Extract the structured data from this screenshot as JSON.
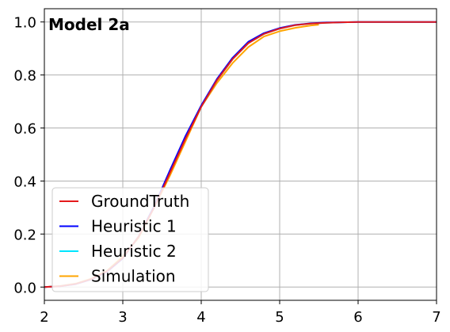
{
  "chart_data": {
    "type": "line",
    "title": "Model 2a",
    "xlabel": "",
    "ylabel": "",
    "xlim": [
      2,
      7
    ],
    "ylim": [
      -0.05,
      1.05
    ],
    "xticks": [
      2,
      3,
      4,
      5,
      6,
      7
    ],
    "yticks": [
      0.0,
      0.2,
      0.4,
      0.6,
      0.8,
      1.0
    ],
    "xtick_labels": [
      "2",
      "3",
      "4",
      "5",
      "6",
      "7"
    ],
    "ytick_labels": [
      "0.0",
      "0.2",
      "0.4",
      "0.6",
      "0.8",
      "1.0"
    ],
    "grid": true,
    "legend_position": "bottom-left",
    "series": [
      {
        "name": "GroundTruth",
        "color": "#e41a1c",
        "x": [
          2.0,
          2.2,
          2.4,
          2.6,
          2.8,
          3.0,
          3.2,
          3.4,
          3.6,
          3.8,
          4.0,
          4.2,
          4.4,
          4.6,
          4.8,
          5.0,
          5.2,
          5.4,
          5.6,
          5.8,
          6.0,
          6.5,
          7.0
        ],
        "y": [
          0.0,
          0.003,
          0.012,
          0.03,
          0.06,
          0.11,
          0.19,
          0.3,
          0.43,
          0.56,
          0.68,
          0.78,
          0.86,
          0.92,
          0.955,
          0.975,
          0.988,
          0.994,
          0.997,
          0.999,
          1.0,
          1.0,
          1.0
        ]
      },
      {
        "name": "Heuristic 1",
        "color": "#0000ff",
        "x": [
          2.0,
          2.2,
          2.4,
          2.6,
          2.8,
          3.0,
          3.2,
          3.4,
          3.6,
          3.8,
          4.0,
          4.2,
          4.4,
          4.6,
          4.8,
          5.0,
          5.2,
          5.4,
          5.6,
          5.8,
          6.0,
          6.5,
          7.0
        ],
        "y": [
          0.0,
          0.003,
          0.011,
          0.029,
          0.058,
          0.108,
          0.19,
          0.305,
          0.44,
          0.57,
          0.685,
          0.785,
          0.865,
          0.925,
          0.958,
          0.977,
          0.989,
          0.995,
          0.998,
          0.999,
          1.0,
          1.0,
          1.0
        ]
      },
      {
        "name": "Heuristic 2",
        "color": "#00e5ff",
        "x": [
          2.0,
          2.2,
          2.4,
          2.6,
          2.8,
          3.0,
          3.2,
          3.4,
          3.6,
          3.8,
          4.0,
          4.2,
          4.4,
          4.6,
          4.8,
          5.0,
          5.2,
          5.4,
          5.6,
          5.8,
          6.0,
          6.5,
          7.0
        ],
        "y": [
          0.0,
          0.003,
          0.012,
          0.03,
          0.06,
          0.11,
          0.19,
          0.3,
          0.435,
          0.565,
          0.68,
          0.78,
          0.86,
          0.92,
          0.955,
          0.975,
          0.988,
          0.994,
          0.997,
          0.999,
          1.0,
          1.0,
          1.0
        ]
      },
      {
        "name": "Simulation",
        "color": "#ffa500",
        "x": [
          2.0,
          2.2,
          2.4,
          2.6,
          2.8,
          3.0,
          3.2,
          3.4,
          3.6,
          3.8,
          4.0,
          4.2,
          4.4,
          4.6,
          4.8,
          5.0,
          5.2,
          5.4,
          5.5
        ],
        "y": [
          0.0,
          0.004,
          0.013,
          0.032,
          0.062,
          0.115,
          0.185,
          0.3,
          0.42,
          0.55,
          0.68,
          0.77,
          0.845,
          0.905,
          0.945,
          0.965,
          0.978,
          0.987,
          0.99
        ]
      }
    ]
  }
}
